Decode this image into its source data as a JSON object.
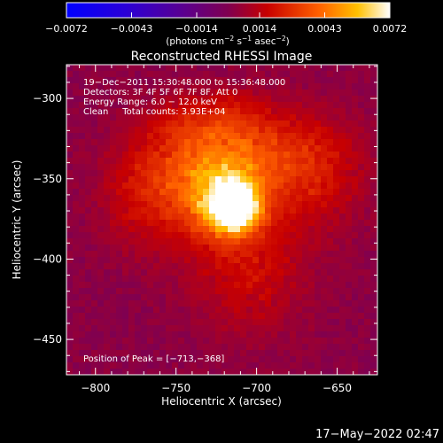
{
  "chart_data": {
    "type": "heatmap",
    "title": "Reconstructed RHESSI Image",
    "xlabel": "Heliocentric X (arcsec)",
    "ylabel": "Heliocentric Y (arcsec)",
    "xlim": [
      -818,
      -625
    ],
    "ylim": [
      -472,
      -279
    ],
    "xticks": [
      -800,
      -750,
      -700,
      -650
    ],
    "xtick_labels": [
      "−800",
      "−750",
      "−700",
      "−650"
    ],
    "yticks": [
      -300,
      -350,
      -400,
      -450
    ],
    "ytick_labels": [
      "−300",
      "−350",
      "−400",
      "−450"
    ],
    "colorbar": {
      "min": -0.0072,
      "max": 0.0072,
      "ticks": [
        -0.0072,
        -0.0043,
        -0.0014,
        0.0014,
        0.0043,
        0.0072
      ],
      "tick_labels": [
        "−0.0072",
        "−0.0043",
        "−0.0014",
        "0.0014",
        "0.0043",
        "0.0072"
      ],
      "units_prefix": "(photons cm",
      "units_exp1": "−2",
      "units_mid1": " s",
      "units_exp2": "−1",
      "units_mid2": " asec",
      "units_exp3": "−2",
      "units_suffix": ")"
    },
    "annotations": [
      "19−Dec−2011 15:30:48.000 to 15:36:48.000",
      "Detectors: 3F 4F 5F 6F 7F 8F, Att 0",
      "Energy Range: 6.0 − 12.0 keV",
      "Clean     Total counts: 3.93E+04"
    ],
    "peak_label": "Position of Peak = [−713,−368]",
    "peak": {
      "x": -713,
      "y": -368
    },
    "source_components": [
      {
        "x": -713,
        "y": -368,
        "amp": 0.0072,
        "sx": 9,
        "sy": 9
      },
      {
        "x": -722,
        "y": -362,
        "amp": 0.004,
        "sx": 18,
        "sy": 18
      },
      {
        "x": -735,
        "y": -340,
        "amp": 0.0022,
        "sx": 30,
        "sy": 22
      },
      {
        "x": -690,
        "y": -335,
        "amp": 0.0018,
        "sx": 28,
        "sy": 20
      },
      {
        "x": -705,
        "y": -405,
        "amp": 0.0016,
        "sx": 25,
        "sy": 28
      },
      {
        "x": -770,
        "y": -365,
        "amp": 0.0014,
        "sx": 18,
        "sy": 22
      },
      {
        "x": -660,
        "y": -350,
        "amp": 0.0012,
        "sx": 20,
        "sy": 25
      },
      {
        "x": -745,
        "y": -318,
        "amp": 0.001,
        "sx": 15,
        "sy": 12
      },
      {
        "x": -715,
        "y": -312,
        "amp": 0.0011,
        "sx": 14,
        "sy": 12
      }
    ]
  },
  "timestamp": "17−May−2022 02:47"
}
